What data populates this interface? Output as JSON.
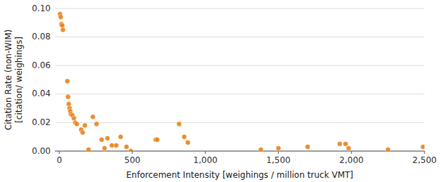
{
  "chart_data": {
    "type": "scatter",
    "x": [
      5,
      10,
      15,
      20,
      25,
      55,
      60,
      65,
      70,
      75,
      80,
      90,
      100,
      110,
      120,
      150,
      160,
      175,
      200,
      230,
      255,
      290,
      310,
      330,
      360,
      390,
      420,
      460,
      490,
      660,
      670,
      820,
      855,
      880,
      1380,
      1500,
      1700,
      1920,
      1960,
      1980,
      2250,
      2490
    ],
    "y": [
      0.096,
      0.094,
      0.089,
      0.088,
      0.085,
      0.049,
      0.038,
      0.033,
      0.03,
      0.028,
      0.026,
      0.025,
      0.023,
      0.02,
      0.019,
      0.015,
      0.013,
      0.018,
      0.001,
      0.024,
      0.019,
      0.008,
      0.002,
      0.009,
      0.004,
      0.004,
      0.01,
      0.003,
      0.0,
      0.008,
      0.008,
      0.019,
      0.01,
      0.006,
      0.001,
      0.002,
      0.003,
      0.005,
      0.005,
      0.002,
      0.001,
      0.003
    ],
    "color": "#E8821A",
    "xlabel": "Enforcement Intensity [weighings / million truck VMT]",
    "ylabel": "Citation Rate (non-WIM)\n[citation/ weighings]",
    "xlim": [
      -30,
      2500
    ],
    "ylim": [
      0,
      0.1
    ],
    "xticks": [
      0,
      500,
      {
        "value": 1000,
        "label": "1,000"
      },
      {
        "value": 1500,
        "label": "1,500"
      },
      {
        "value": 2000,
        "label": "2,000"
      },
      {
        "value": 2500,
        "label": "2,500"
      }
    ],
    "yticks": [
      {
        "value": 0.0,
        "label": "0.00"
      },
      {
        "value": 0.02,
        "label": "0.02"
      },
      {
        "value": 0.04,
        "label": "0.04"
      },
      {
        "value": 0.06,
        "label": "0.06"
      },
      {
        "value": 0.08,
        "label": "0.08"
      },
      {
        "value": 0.1,
        "label": "0.10"
      }
    ],
    "grid": true
  }
}
